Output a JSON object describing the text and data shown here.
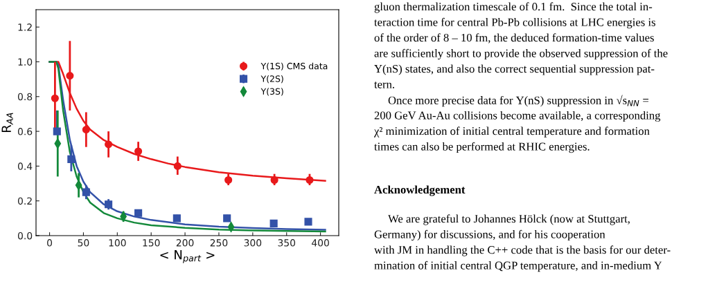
{
  "chart_data": {
    "type": "scatter",
    "xlabel": "< N$_{part}$ >",
    "ylabel": "R$_{AA}$",
    "xlim": [
      -20,
      427
    ],
    "ylim": [
      0,
      1.3
    ],
    "xticks": [
      0,
      50,
      100,
      150,
      200,
      250,
      300,
      350,
      400
    ],
    "yticks": [
      {
        "value": 0,
        "label": "0.0"
      },
      0.2,
      0.4,
      0.6,
      0.8,
      {
        "value": 1,
        "label": "1.0"
      },
      1.2
    ],
    "grid": false,
    "legend": "top right",
    "series": [
      {
        "type": "line",
        "color": "#e8191b",
        "x": [
          0,
          10,
          13,
          20,
          30,
          40,
          50,
          60,
          80,
          100,
          125,
          150,
          175,
          200,
          250,
          300,
          350,
          407
        ],
        "values": [
          1,
          1,
          1,
          0.93,
          0.82,
          0.73,
          0.66,
          0.61,
          0.55,
          0.51,
          0.47,
          0.44,
          0.415,
          0.395,
          0.365,
          0.345,
          0.33,
          0.315
        ]
      },
      {
        "type": "line",
        "color": "#3352a8",
        "x": [
          0,
          10,
          13,
          20,
          30,
          40,
          50,
          60,
          80,
          100,
          125,
          150,
          200,
          250,
          300,
          350,
          407
        ],
        "values": [
          1,
          1,
          0.98,
          0.78,
          0.55,
          0.4,
          0.31,
          0.25,
          0.18,
          0.14,
          0.11,
          0.09,
          0.065,
          0.052,
          0.044,
          0.038,
          0.034
        ]
      },
      {
        "type": "line",
        "color": "#13893a",
        "x": [
          0,
          10,
          13,
          20,
          30,
          40,
          50,
          60,
          80,
          100,
          125,
          150,
          200,
          250,
          300,
          350,
          407
        ],
        "values": [
          1,
          1,
          0.96,
          0.72,
          0.48,
          0.34,
          0.25,
          0.19,
          0.13,
          0.1,
          0.075,
          0.06,
          0.045,
          0.035,
          0.03,
          0.027,
          0.024
        ]
      },
      {
        "name": "Y(1S) CMS data",
        "color": "#e8191b",
        "marker": "circle",
        "x": [
          8,
          30,
          54,
          87,
          131,
          189,
          264,
          332,
          384
        ],
        "values": [
          0.79,
          0.92,
          0.61,
          0.525,
          0.485,
          0.4,
          0.32,
          0.32,
          0.32
        ],
        "errors": [
          [
            0.58,
            1.0
          ],
          [
            0.72,
            1.12
          ],
          [
            0.51,
            0.71
          ],
          [
            0.45,
            0.6
          ],
          [
            0.43,
            0.54
          ],
          [
            0.35,
            0.455
          ],
          [
            0.29,
            0.355
          ],
          [
            0.29,
            0.355
          ],
          [
            0.29,
            0.355
          ]
        ]
      },
      {
        "name": "Y(2S)",
        "color": "#3352a8",
        "marker": "square",
        "x": [
          11,
          32,
          54,
          87,
          131,
          188,
          262,
          331,
          382
        ],
        "values": [
          0.6,
          0.44,
          0.25,
          0.18,
          0.13,
          0.1,
          0.1,
          0.07,
          0.08
        ],
        "errors": [
          [
            0.58,
            0.72
          ],
          [
            0.37,
            0.52
          ],
          [
            0.21,
            0.29
          ],
          [
            0.15,
            0.21
          ],
          [
            0.11,
            0.15
          ],
          [
            0.08,
            0.12
          ],
          [
            0.08,
            0.12
          ],
          [
            0.05,
            0.09
          ],
          [
            0.065,
            0.095
          ]
        ]
      },
      {
        "name": "Y(3S)",
        "color": "#13893a",
        "marker": "diamond",
        "x": [
          12,
          43,
          109,
          268
        ],
        "values": [
          0.53,
          0.29,
          0.11,
          0.05
        ],
        "errors": [
          [
            0.34,
            0.72
          ],
          [
            0.22,
            0.36
          ],
          [
            0.08,
            0.14
          ],
          [
            0.03,
            0.07
          ]
        ]
      }
    ],
    "annotations": [
      "gluon thermalization timescale of 0.1 fm.  Since the total in-\nteraction time for central Pb-Pb collisions at LHC energies is\nof the order of 8 – 10 fm, the deduced formation-time values\nare sufficiently short to provide the observed suppression of the\nΥ(nS) states, and also the correct sequential suppression pat-\ntern.",
      "Once more precise data for Υ(nS) suppression in √s$_{NN}$ =\n200 GeV Au-Au collisions become available, a corresponding\nχ² minimization of initial central temperature and formation\ntimes can also be performed at RHIC energies.",
      "Acknowledgement",
      "We are grateful to Johannes Hölck (now at Stuttgart,\nGermany) for discussions, and for his cooperation\nwith JM in handling the C++ code that is the basis for our deter-\nmination of initial central QGP temperature, and in-medium Υ"
    ]
  }
}
